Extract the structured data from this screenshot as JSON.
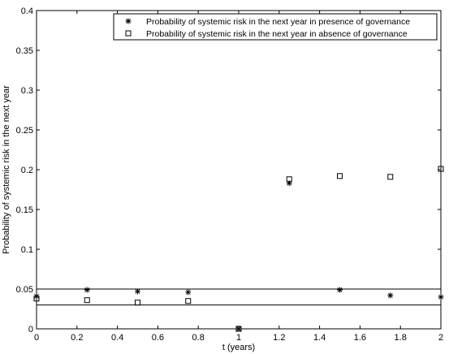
{
  "chart_data": {
    "type": "scatter",
    "xlabel": "t (years)",
    "ylabel": "Probability of  systemic risk in the next year",
    "xlim": [
      0,
      2
    ],
    "ylim": [
      0,
      0.4
    ],
    "x_ticks": [
      0,
      0.2,
      0.4,
      0.6,
      0.8,
      1,
      1.2,
      1.4,
      1.6,
      1.8,
      2
    ],
    "x_tick_labels": [
      "0",
      "0.2",
      "0.4",
      "0.6",
      "0.8",
      "1",
      "1.2",
      "1.4",
      "1.6",
      "1.8",
      "2"
    ],
    "y_ticks": [
      0,
      0.05,
      0.1,
      0.15,
      0.2,
      0.25,
      0.3,
      0.35,
      0.4
    ],
    "y_tick_labels": [
      "0",
      "0.05",
      "0.1",
      "0.15",
      "0.2",
      "0.25",
      "0.3",
      "0.35",
      "0.4"
    ],
    "grid": false,
    "legend_position": "top-right",
    "series": [
      {
        "name": "Probability of  systemic risk in the next year in presence of governance",
        "marker": "asterisk",
        "x": [
          0,
          0.25,
          0.5,
          0.75,
          1,
          1.25,
          1.5,
          1.75,
          2
        ],
        "y": [
          0.041,
          0.049,
          0.047,
          0.046,
          0.0,
          0.183,
          0.049,
          0.042,
          0.04
        ]
      },
      {
        "name": "Probability of  systemic risk in the next year in absence of governance",
        "marker": "square",
        "x": [
          0,
          0.25,
          0.5,
          0.75,
          1,
          1.25,
          1.5,
          1.75,
          2
        ],
        "y": [
          0.038,
          0.036,
          0.033,
          0.035,
          0.0,
          0.188,
          0.192,
          0.191,
          0.201
        ]
      }
    ],
    "reference_lines": [
      {
        "orientation": "horizontal",
        "y": 0.05
      },
      {
        "orientation": "horizontal",
        "y": 0.03
      }
    ]
  }
}
